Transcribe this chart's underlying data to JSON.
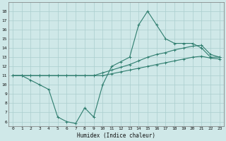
{
  "xlabel": "Humidex (Indice chaleur)",
  "xlim": [
    -0.5,
    23.5
  ],
  "ylim": [
    5.5,
    19
  ],
  "yticks": [
    6,
    7,
    8,
    9,
    10,
    11,
    12,
    13,
    14,
    15,
    16,
    17,
    18
  ],
  "xticks": [
    0,
    1,
    2,
    3,
    4,
    5,
    6,
    7,
    8,
    9,
    10,
    11,
    12,
    13,
    14,
    15,
    16,
    17,
    18,
    19,
    20,
    21,
    22,
    23
  ],
  "background_color": "#cfe8e8",
  "grid_color": "#aacece",
  "line_color": "#2e7d6e",
  "line1_x": [
    0,
    1,
    2,
    3,
    4,
    5,
    6,
    7,
    8,
    9,
    10,
    11,
    12,
    13,
    14,
    15,
    16,
    17,
    18,
    19,
    20,
    21,
    22,
    23
  ],
  "line1_y": [
    11,
    11,
    10.5,
    10,
    9.5,
    6.5,
    6,
    5.8,
    7.5,
    6.5,
    10,
    12.0,
    12.5,
    13.0,
    16.5,
    18.0,
    16.5,
    15.0,
    14.5,
    14.5,
    14.5,
    14.0,
    13.0,
    13.0
  ],
  "line2_x": [
    0,
    1,
    2,
    3,
    4,
    5,
    6,
    7,
    8,
    9,
    10,
    11,
    12,
    13,
    14,
    15,
    16,
    17,
    18,
    19,
    20,
    21,
    22,
    23
  ],
  "line2_y": [
    11,
    11,
    11,
    11,
    11,
    11,
    11,
    11,
    11,
    11,
    11.3,
    11.6,
    11.9,
    12.2,
    12.6,
    13.0,
    13.3,
    13.5,
    13.8,
    14.0,
    14.2,
    14.3,
    13.3,
    13.0
  ],
  "line3_x": [
    0,
    1,
    2,
    3,
    4,
    5,
    6,
    7,
    8,
    9,
    10,
    11,
    12,
    13,
    14,
    15,
    16,
    17,
    18,
    19,
    20,
    21,
    22,
    23
  ],
  "line3_y": [
    11,
    11,
    11,
    11,
    11,
    11,
    11,
    11,
    11,
    11,
    11,
    11.2,
    11.4,
    11.6,
    11.8,
    12.0,
    12.2,
    12.4,
    12.6,
    12.8,
    13.0,
    13.1,
    12.9,
    12.8
  ]
}
